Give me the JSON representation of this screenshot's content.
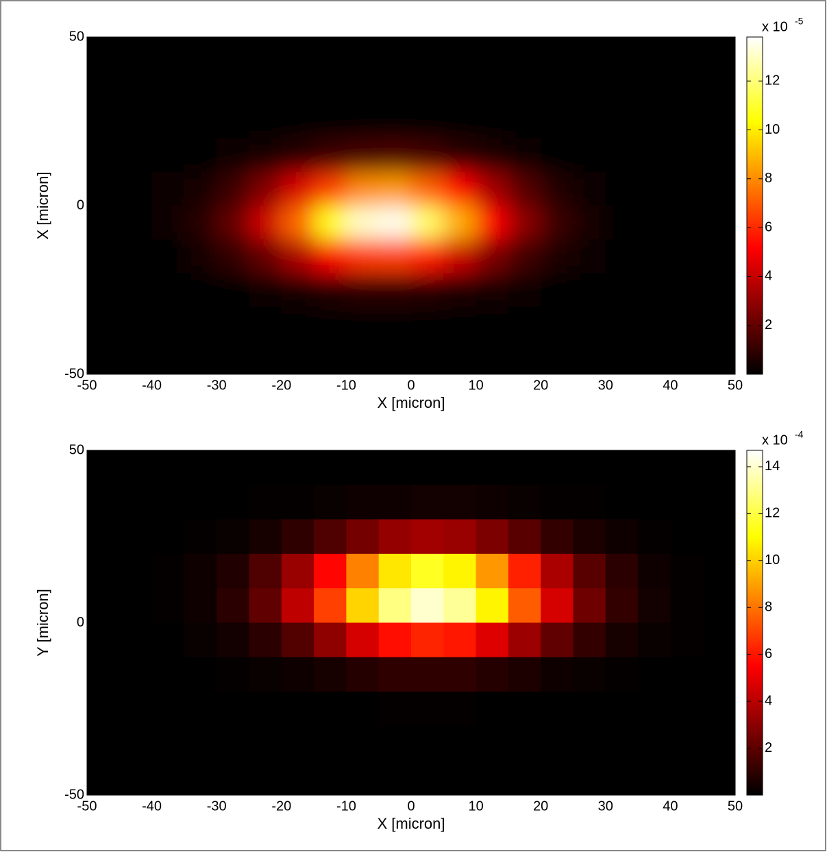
{
  "chart_data": [
    {
      "type": "heatmap",
      "colormap": "hot",
      "ylabel": "X [micron]",
      "xlabel": "X [micron]",
      "xlim": [
        -50,
        50
      ],
      "ylim": [
        -50,
        50
      ],
      "xticks": [
        -50,
        -40,
        -30,
        -20,
        -10,
        0,
        10,
        20,
        30,
        40,
        50
      ],
      "yticks": [
        -50,
        0,
        50
      ],
      "xbins": [
        -50,
        -45,
        -40,
        -35,
        -30,
        -25,
        -20,
        -15,
        -10,
        -5,
        0,
        5,
        10,
        15,
        20,
        25,
        30,
        35,
        40,
        45,
        50
      ],
      "ybins": [
        50,
        40,
        30,
        20,
        10,
        0,
        -10,
        -20,
        -30,
        -40,
        -50
      ],
      "smooth": true,
      "clim": [
        0,
        13.8
      ],
      "cticks": [
        2,
        4,
        6,
        8,
        10,
        12
      ],
      "colorbar_exponent_base": "x 10",
      "colorbar_exponent": "-5",
      "z": [
        [
          0,
          0,
          0,
          0,
          0,
          0,
          0,
          0,
          0,
          0,
          0,
          0,
          0,
          0,
          0,
          0,
          0,
          0,
          0,
          0
        ],
        [
          0,
          0,
          0,
          0,
          0,
          0,
          0,
          0,
          0,
          0,
          0,
          0,
          0,
          0,
          0,
          0,
          0,
          0,
          0,
          0
        ],
        [
          0,
          0,
          0,
          0,
          0,
          0,
          0,
          0.1,
          0.1,
          0.1,
          0.1,
          0,
          0,
          0,
          0,
          0,
          0,
          0,
          0,
          0
        ],
        [
          0,
          0,
          0,
          0.1,
          0.2,
          0.5,
          0.8,
          1.2,
          1.4,
          1.5,
          1.3,
          0.9,
          0.6,
          0.3,
          0.1,
          0,
          0,
          0,
          0,
          0
        ],
        [
          0,
          0,
          0.2,
          0.5,
          1.2,
          2.6,
          4.4,
          6.5,
          8.0,
          8.3,
          7.2,
          5.3,
          3.3,
          1.7,
          0.7,
          0.3,
          0.1,
          0,
          0,
          0
        ],
        [
          0,
          0.1,
          0.3,
          0.8,
          2.0,
          4.2,
          7.3,
          10.7,
          13.1,
          13.6,
          11.8,
          8.7,
          5.3,
          2.8,
          1.2,
          0.4,
          0.1,
          0,
          0,
          0
        ],
        [
          0,
          0,
          0.1,
          0.4,
          1.0,
          2.0,
          3.5,
          5.1,
          6.3,
          6.5,
          5.7,
          4.1,
          2.5,
          1.3,
          0.6,
          0.2,
          0.1,
          0,
          0,
          0
        ],
        [
          0,
          0,
          0,
          0.1,
          0.1,
          0.3,
          0.5,
          0.7,
          0.9,
          0.9,
          0.8,
          0.6,
          0.4,
          0.2,
          0.1,
          0,
          0,
          0,
          0,
          0
        ],
        [
          0,
          0,
          0,
          0,
          0,
          0,
          0,
          0,
          0,
          0,
          0,
          0,
          0,
          0,
          0,
          0,
          0,
          0,
          0,
          0
        ],
        [
          0,
          0,
          0,
          0,
          0,
          0,
          0,
          0,
          0,
          0,
          0,
          0,
          0,
          0,
          0,
          0,
          0,
          0,
          0,
          0
        ]
      ]
    },
    {
      "type": "heatmap",
      "colormap": "hot",
      "ylabel": "Y [micron]",
      "xlabel": "X [micron]",
      "xlim": [
        -50,
        50
      ],
      "ylim": [
        -50,
        50
      ],
      "xticks": [
        -50,
        -40,
        -30,
        -20,
        -10,
        0,
        10,
        20,
        30,
        40,
        50
      ],
      "yticks": [
        -50,
        0,
        50
      ],
      "xbins": [
        -50,
        -45,
        -40,
        -35,
        -30,
        -25,
        -20,
        -15,
        -10,
        -5,
        0,
        5,
        10,
        15,
        20,
        25,
        30,
        35,
        40,
        45,
        50
      ],
      "ybins": [
        50,
        40,
        30,
        20,
        10,
        0,
        -10,
        -20,
        -30,
        -40,
        -50
      ],
      "smooth": false,
      "clim": [
        0,
        14.7
      ],
      "cticks": [
        2,
        4,
        6,
        8,
        10,
        12,
        14
      ],
      "colorbar_exponent_base": "x 10",
      "colorbar_exponent": "-4",
      "z": [
        [
          0,
          0,
          0,
          0,
          0,
          0,
          0,
          0,
          0,
          0,
          0,
          0,
          0,
          0,
          0,
          0,
          0,
          0,
          0,
          0
        ],
        [
          0,
          0,
          0,
          0,
          0,
          0.1,
          0.1,
          0.2,
          0.3,
          0.3,
          0.4,
          0.4,
          0.3,
          0.2,
          0.1,
          0.1,
          0,
          0,
          0,
          0
        ],
        [
          0,
          0,
          0,
          0.1,
          0.2,
          0.5,
          1.0,
          1.7,
          2.5,
          3.2,
          3.5,
          3.3,
          2.7,
          1.9,
          1.1,
          0.6,
          0.3,
          0.1,
          0,
          0
        ],
        [
          0,
          0,
          0.1,
          0.3,
          0.7,
          1.7,
          3.3,
          5.6,
          8.3,
          10.5,
          11.5,
          10.8,
          8.8,
          6.2,
          3.7,
          1.9,
          0.9,
          0.3,
          0.1,
          0
        ],
        [
          0,
          0,
          0.1,
          0.3,
          0.9,
          2.1,
          4.1,
          6.9,
          10.1,
          12.9,
          14.0,
          13.2,
          10.8,
          7.5,
          4.6,
          2.4,
          1.1,
          0.4,
          0.1,
          0
        ],
        [
          0,
          0,
          0,
          0.2,
          0.4,
          0.9,
          1.8,
          3.1,
          4.6,
          5.8,
          6.3,
          6.0,
          4.8,
          3.4,
          2.1,
          1.1,
          0.5,
          0.2,
          0.1,
          0
        ],
        [
          0,
          0,
          0,
          0,
          0.1,
          0.2,
          0.3,
          0.5,
          0.8,
          1.0,
          1.0,
          1.0,
          0.8,
          0.6,
          0.3,
          0.2,
          0.1,
          0,
          0,
          0
        ],
        [
          0,
          0,
          0,
          0,
          0,
          0,
          0,
          0,
          0,
          0.1,
          0.1,
          0.1,
          0,
          0,
          0,
          0,
          0,
          0,
          0,
          0
        ],
        [
          0,
          0,
          0,
          0,
          0,
          0,
          0,
          0,
          0,
          0,
          0,
          0,
          0,
          0,
          0,
          0,
          0,
          0,
          0,
          0
        ],
        [
          0,
          0,
          0,
          0,
          0,
          0,
          0,
          0,
          0,
          0,
          0,
          0,
          0,
          0,
          0,
          0,
          0,
          0,
          0,
          0
        ]
      ]
    }
  ]
}
